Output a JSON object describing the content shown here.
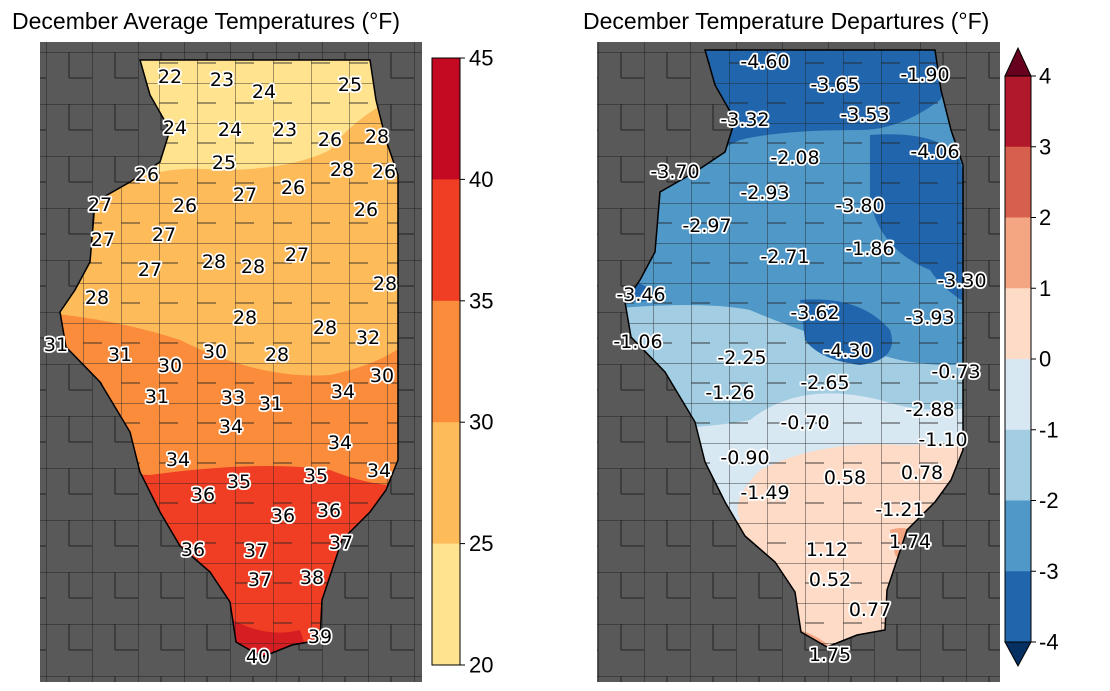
{
  "left_map": {
    "title": "December Average Temperatures (°F)",
    "colorbar": {
      "ticks": [
        "45",
        "40",
        "35",
        "30",
        "25",
        "20"
      ],
      "bins": [
        {
          "range": [
            40,
            45
          ],
          "color": "#c40a22"
        },
        {
          "range": [
            35,
            40
          ],
          "color": "#ef3e23"
        },
        {
          "range": [
            30,
            35
          ],
          "color": "#fa8c3c"
        },
        {
          "range": [
            25,
            30
          ],
          "color": "#fdbb5a"
        },
        {
          "range": [
            20,
            25
          ],
          "color": "#ffe38f"
        }
      ]
    },
    "station_values": [
      "22",
      "23",
      "24",
      "25",
      "24",
      "24",
      "23",
      "26",
      "28",
      "25",
      "28",
      "26",
      "26",
      "27",
      "26",
      "27",
      "26",
      "26",
      "27",
      "27",
      "28",
      "28",
      "27",
      "27",
      "28",
      "28",
      "28",
      "28",
      "32",
      "31",
      "31",
      "30",
      "30",
      "28",
      "34",
      "30",
      "31",
      "33",
      "31",
      "34",
      "34",
      "34",
      "35",
      "34",
      "35",
      "36",
      "36",
      "36",
      "37",
      "36",
      "37",
      "37",
      "38",
      "39",
      "40"
    ]
  },
  "right_map": {
    "title": "December Temperature Departures (°F)",
    "colorbar": {
      "ticks": [
        "4",
        "3",
        "2",
        "1",
        "0",
        "-1",
        "-2",
        "-3",
        "-4"
      ],
      "bins": [
        {
          "range": [
            3,
            4
          ],
          "color": "#b2182b"
        },
        {
          "range": [
            2,
            3
          ],
          "color": "#d6604d"
        },
        {
          "range": [
            1,
            2
          ],
          "color": "#f4a582"
        },
        {
          "range": [
            0,
            1
          ],
          "color": "#fddbc7"
        },
        {
          "range": [
            -1,
            0
          ],
          "color": "#d8e8f2"
        },
        {
          "range": [
            -2,
            -1
          ],
          "color": "#a3cde3"
        },
        {
          "range": [
            -3,
            -2
          ],
          "color": "#4f98c8"
        },
        {
          "range": [
            -4,
            -3
          ],
          "color": "#2166ac"
        }
      ],
      "over_color": "#67001f",
      "under_color": "#053061"
    },
    "station_values": [
      "-4.60",
      "-3.65",
      "-1.90",
      "-3.32",
      "-3.53",
      "-2.08",
      "-4.06",
      "-3.70",
      "-2.93",
      "-3.80",
      "-2.97",
      "-2.71",
      "-1.86",
      "-3.30",
      "-3.46",
      "-3.62",
      "-3.93",
      "-1.06",
      "-2.25",
      "-4.30",
      "-0.73",
      "-2.65",
      "-1.26",
      "-2.88",
      "-0.70",
      "-1.10",
      "-0.90",
      "0.58",
      "0.78",
      "-1.49",
      "-1.21",
      "1.74",
      "1.12",
      "0.52",
      "0.77",
      "1.75"
    ]
  },
  "colors": {
    "background_land": "#595959",
    "county_line": "#222222"
  }
}
